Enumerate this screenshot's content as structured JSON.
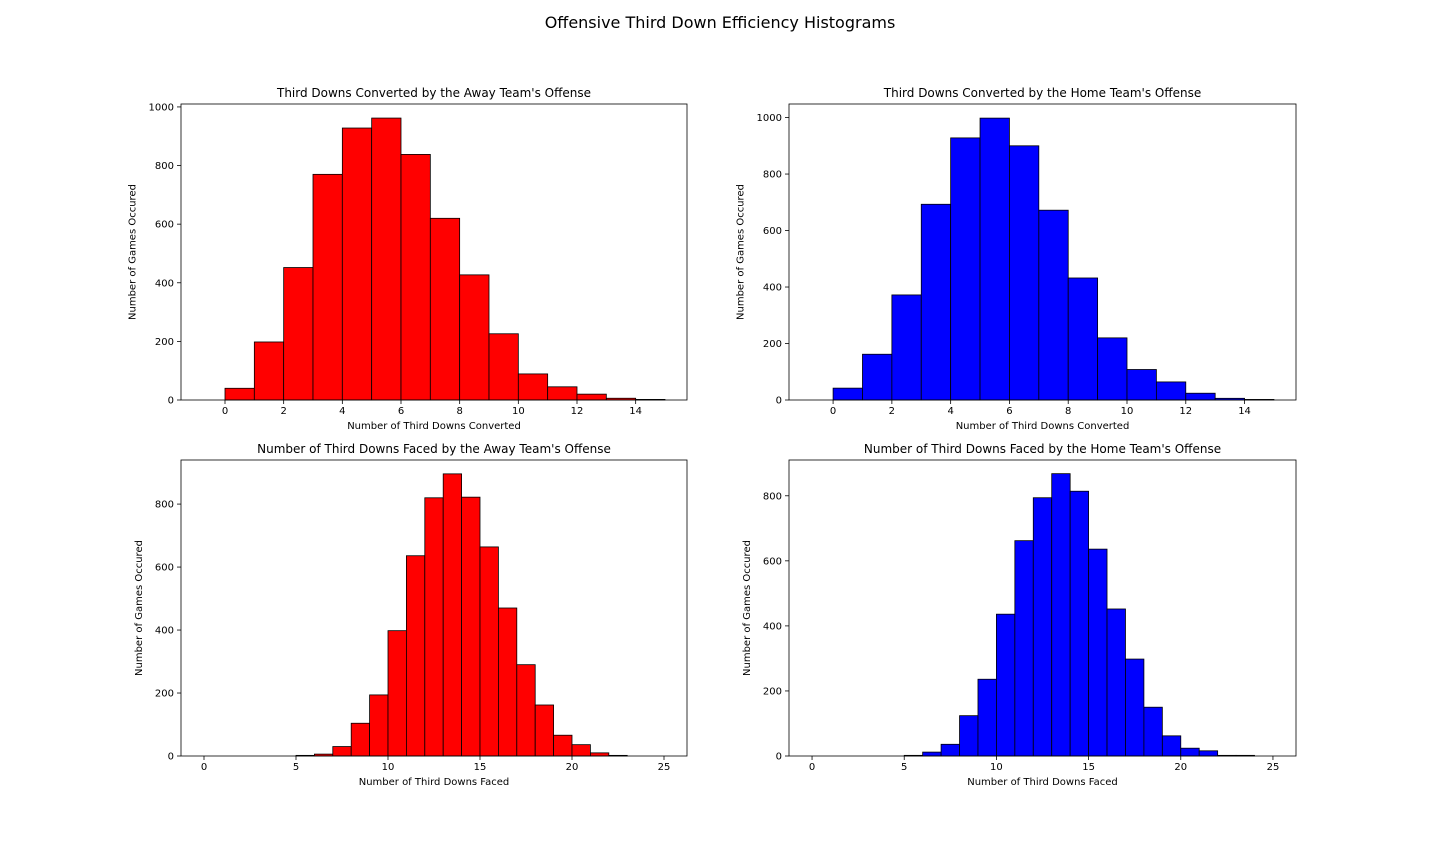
{
  "figure": {
    "suptitle": "Offensive Third Down Efficiency Histograms"
  },
  "chart_data": [
    {
      "type": "bar",
      "title": "Third Downs Converted by the Away Team's Offense",
      "xlabel": "Number of Third Downs Converted",
      "ylabel": "Number of Games Occured",
      "bin_edges": [
        0,
        1,
        2,
        3,
        4,
        5,
        6,
        7,
        8,
        9,
        10,
        11,
        12,
        13,
        14,
        15
      ],
      "values": [
        40,
        198,
        452,
        770,
        928,
        962,
        838,
        620,
        427,
        226,
        89,
        45,
        20,
        6,
        2
      ],
      "xticks": [
        0,
        2,
        4,
        6,
        8,
        10,
        12,
        14
      ],
      "yticks": [
        0,
        200,
        400,
        600,
        800,
        1000
      ],
      "xlim": [
        -1.5,
        15.75
      ],
      "ylim": [
        0,
        1010
      ],
      "color": "#ff0000",
      "grid": false
    },
    {
      "type": "bar",
      "title": "Third Downs Converted by the Home Team's Offense",
      "xlabel": "Number of Third Downs Converted",
      "ylabel": "Number of Games Occured",
      "bin_edges": [
        0,
        1,
        2,
        3,
        4,
        5,
        6,
        7,
        8,
        9,
        10,
        11,
        12,
        13,
        14,
        15
      ],
      "values": [
        42,
        162,
        372,
        693,
        928,
        998,
        900,
        672,
        432,
        220,
        108,
        64,
        24,
        6,
        2
      ],
      "xticks": [
        0,
        2,
        4,
        6,
        8,
        10,
        12,
        14
      ],
      "yticks": [
        0,
        200,
        400,
        600,
        800,
        1000
      ],
      "xlim": [
        -1.5,
        15.75
      ],
      "ylim": [
        0,
        1048
      ],
      "color": "#0000ff",
      "grid": false
    },
    {
      "type": "bar",
      "title": "Number of Third Downs Faced by the Away Team's Offense",
      "xlabel": "Number of Third Downs Faced",
      "ylabel": "Number of Games Occured",
      "bin_edges": [
        5,
        6,
        7,
        8,
        9,
        10,
        11,
        12,
        13,
        14,
        15,
        16,
        17,
        18,
        19,
        20,
        21,
        22,
        23
      ],
      "values": [
        2,
        6,
        30,
        104,
        194,
        398,
        636,
        820,
        896,
        822,
        664,
        470,
        290,
        162,
        66,
        36,
        10,
        2
      ],
      "xticks": [
        0,
        5,
        10,
        15,
        20,
        25
      ],
      "yticks": [
        0,
        200,
        400,
        600,
        800
      ],
      "xlim": [
        -1.25,
        26.25
      ],
      "ylim": [
        0,
        940
      ],
      "color": "#ff0000",
      "grid": false
    },
    {
      "type": "bar",
      "title": "Number of Third Downs Faced by the Home Team's Offense",
      "xlabel": "Number of Third Downs Faced",
      "ylabel": "Number of Games Occured",
      "bin_edges": [
        5,
        6,
        7,
        8,
        9,
        10,
        11,
        12,
        13,
        14,
        15,
        16,
        17,
        18,
        19,
        20,
        21,
        22,
        23,
        24
      ],
      "values": [
        2,
        12,
        36,
        124,
        236,
        436,
        662,
        794,
        868,
        814,
        636,
        452,
        298,
        150,
        62,
        24,
        16,
        2,
        2
      ],
      "xticks": [
        0,
        5,
        10,
        15,
        20,
        25
      ],
      "yticks": [
        0,
        200,
        400,
        600,
        800
      ],
      "xlim": [
        -1.25,
        26.25
      ],
      "ylim": [
        0,
        910
      ],
      "color": "#0000ff",
      "grid": false
    }
  ]
}
